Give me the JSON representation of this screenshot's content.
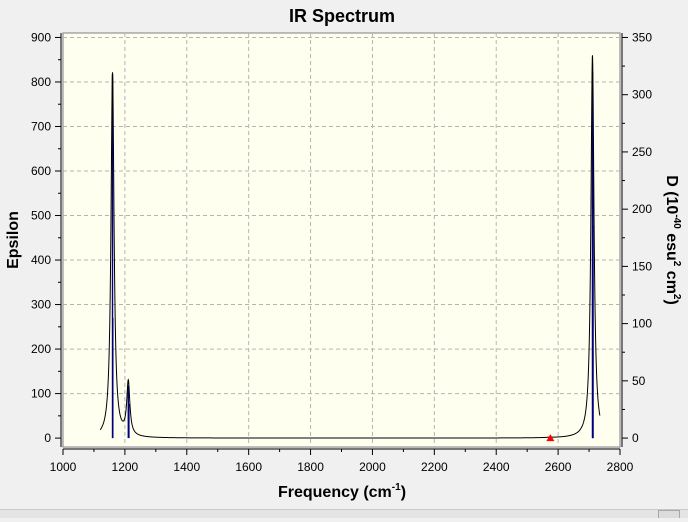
{
  "chart_data": {
    "type": "line",
    "title": "IR Spectrum",
    "xlabel": "Frequency (cm",
    "xlabel_sup": "-1",
    "xlabel_end": ")",
    "ylabel": "Epsilon",
    "y2label": "D (10",
    "y2label_sup1": "-40",
    "y2label_mid": " esu",
    "y2label_sup2": "2",
    "y2label_mid2": " cm",
    "y2label_sup3": "2",
    "y2label_end": ")",
    "xlim": [
      1000,
      2800
    ],
    "ylim": [
      -20,
      910
    ],
    "y2lim": [
      -7.8,
      353.9
    ],
    "xticks": [
      1000,
      1200,
      1400,
      1600,
      1800,
      2000,
      2200,
      2400,
      2600,
      2800
    ],
    "yticks": [
      0,
      100,
      200,
      300,
      400,
      500,
      600,
      700,
      800,
      900
    ],
    "y2ticks": [
      0,
      50,
      100,
      150,
      200,
      250,
      300,
      350
    ],
    "grid": true,
    "plot_background": "#fffff0",
    "line_color": "#000000",
    "bar_color": "#00007f",
    "marker_color": "#ff0000",
    "peak_width": 6,
    "peaks": [
      {
        "freq": 1160,
        "epsilon": 820
      },
      {
        "freq": 1211,
        "epsilon": 120
      },
      {
        "freq": 2573,
        "epsilon": 1
      },
      {
        "freq": 2711,
        "epsilon": 860
      }
    ],
    "sticks": [
      {
        "freq": 1160,
        "d": 318
      },
      {
        "freq": 1161,
        "d": 105
      },
      {
        "freq": 1211,
        "d": 46
      },
      {
        "freq": 1213,
        "d": 30
      },
      {
        "freq": 2573,
        "d": 0.5
      },
      {
        "freq": 2711,
        "d": 320
      },
      {
        "freq": 2712,
        "d": 282
      },
      {
        "freq": 2713,
        "d": 186
      }
    ],
    "marker": {
      "freq": 2575,
      "epsilon": 0
    }
  }
}
